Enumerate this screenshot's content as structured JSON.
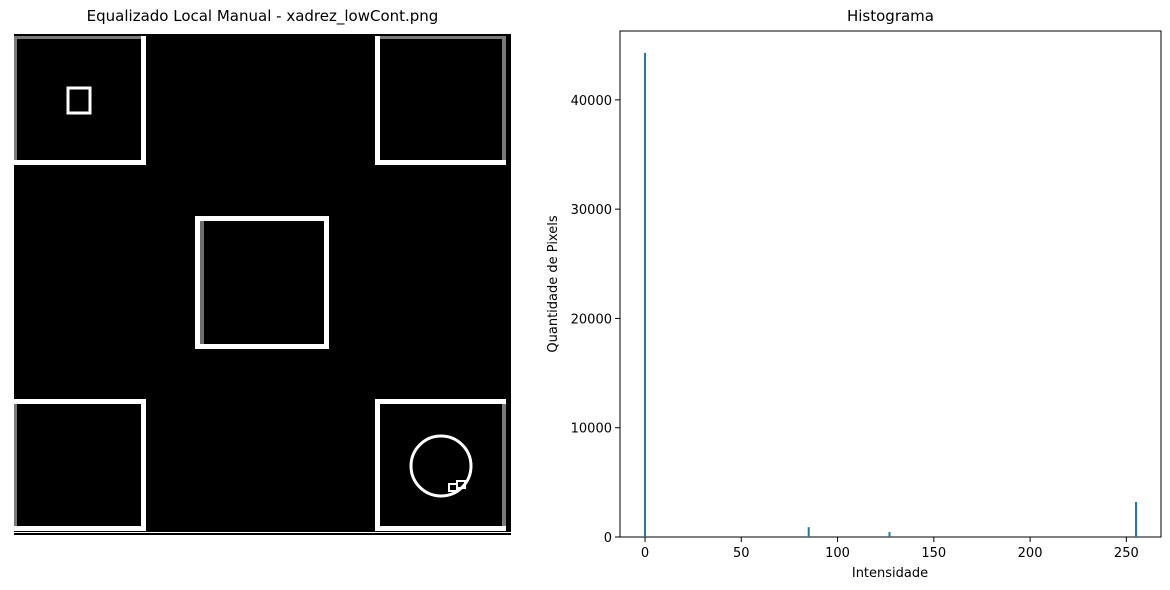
{
  "image_panel": {
    "title": "Equalizado Local Manual - xadrez_lowCont.png"
  },
  "chart_data": {
    "type": "bar",
    "title": "Histograma",
    "xlabel": "Intensidade",
    "ylabel": "Quantidade de Pixels",
    "xlim": [
      -13,
      268
    ],
    "ylim": [
      0,
      46300
    ],
    "xticks": [
      0,
      50,
      100,
      150,
      200,
      250
    ],
    "yticks": [
      0,
      10000,
      20000,
      30000,
      40000
    ],
    "bars": [
      {
        "x": 0,
        "y": 44300
      },
      {
        "x": 85,
        "y": 900
      },
      {
        "x": 127,
        "y": 450
      },
      {
        "x": 255,
        "y": 3200
      }
    ],
    "bar_color": "#1f77b4",
    "grid": false
  }
}
